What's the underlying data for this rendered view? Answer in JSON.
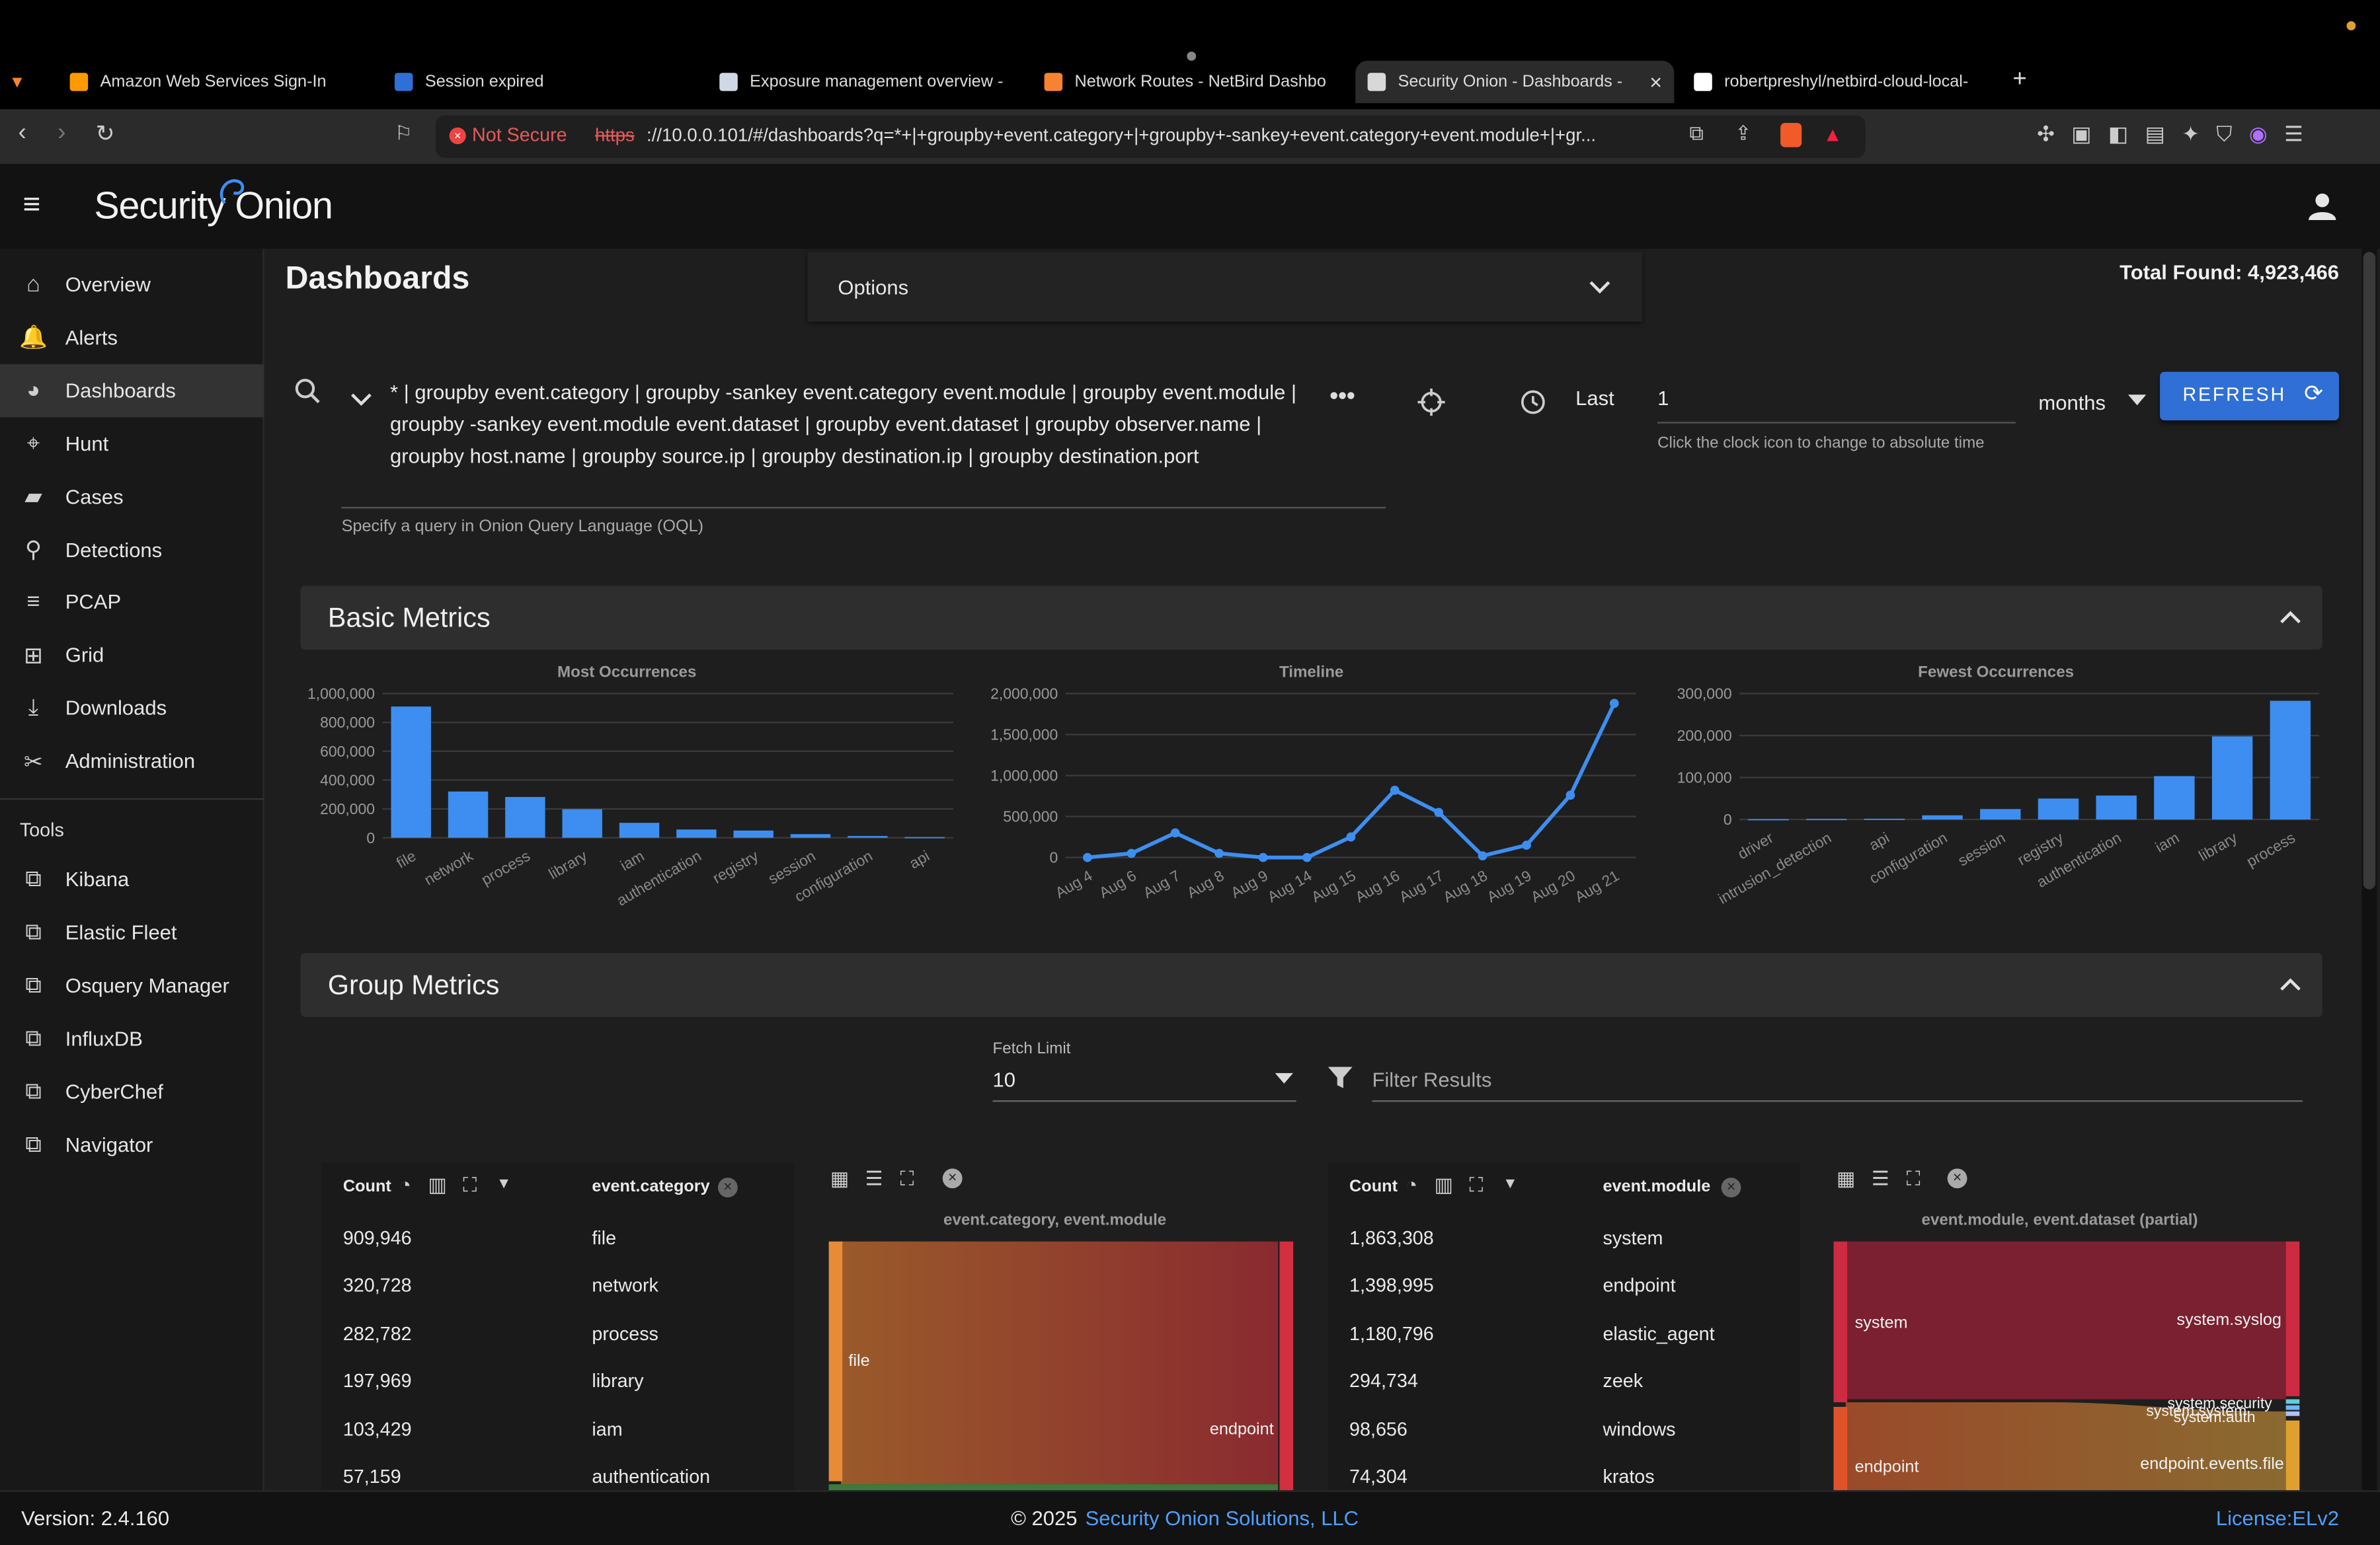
{
  "browser": {
    "tabs": [
      {
        "title": "Amazon Web Services Sign-In",
        "color": "#ff9900"
      },
      {
        "title": "Session expired",
        "color": "#2f6fd6"
      },
      {
        "title": "Exposure management overview -",
        "color": "#cfd8e6"
      },
      {
        "title": "Network Routes - NetBird Dashbo",
        "color": "#f68330"
      },
      {
        "title": "Security Onion - Dashboards -",
        "color": "#d8d8d8"
      },
      {
        "title": "robertpreshyl/netbird-cloud-local-",
        "color": "#ffffff"
      }
    ],
    "active_tab_index": 4,
    "not_secure_label": "Not Secure",
    "url_scheme": "https",
    "url_rest": "://10.0.0.101/#/dashboards?q=*+|+groupby+event.category+|+groupby+-sankey+event.category+event.module+|+gr..."
  },
  "app": {
    "logo_text_1": "Security",
    "logo_text_2": "Onion",
    "page_title": "Dashboards",
    "options_label": "Options",
    "total_found": "Total Found: 4,923,466"
  },
  "sidebar": {
    "items": [
      {
        "label": "Overview",
        "icon": "home-icon"
      },
      {
        "label": "Alerts",
        "icon": "bell-icon"
      },
      {
        "label": "Dashboards",
        "icon": "pie-chart-icon"
      },
      {
        "label": "Hunt",
        "icon": "crosshair-icon"
      },
      {
        "label": "Cases",
        "icon": "briefcase-icon"
      },
      {
        "label": "Detections",
        "icon": "search-icon"
      },
      {
        "label": "PCAP",
        "icon": "list-icon"
      },
      {
        "label": "Grid",
        "icon": "network-icon"
      },
      {
        "label": "Downloads",
        "icon": "download-icon"
      },
      {
        "label": "Administration",
        "icon": "tools-icon"
      }
    ],
    "active_index": 2,
    "tools_heading": "Tools",
    "tools": [
      {
        "label": "Kibana"
      },
      {
        "label": "Elastic Fleet"
      },
      {
        "label": "Osquery Manager"
      },
      {
        "label": "InfluxDB"
      },
      {
        "label": "CyberChef"
      },
      {
        "label": "Navigator"
      }
    ]
  },
  "query": {
    "text": "* | groupby event.category | groupby -sankey event.category event.module | groupby event.module | groupby -sankey event.module event.dataset | groupby event.dataset | groupby observer.name | groupby host.name | groupby source.ip | groupby destination.ip | groupby destination.port",
    "hint": "Specify a query in Onion Query Language (OQL)",
    "time_prefix": "Last",
    "time_value": "1",
    "time_unit": "months",
    "time_hint": "Click the clock icon to change to absolute time",
    "refresh_label": "REFRESH"
  },
  "basic_metrics": {
    "title": "Basic Metrics"
  },
  "group_metrics": {
    "title": "Group Metrics",
    "fetch_limit_label": "Fetch Limit",
    "fetch_limit_value": "10",
    "filter_placeholder": "Filter Results"
  },
  "chart_data": [
    {
      "type": "bar",
      "title": "Most Occurrences",
      "categories": [
        "file",
        "network",
        "process",
        "library",
        "iam",
        "authentication",
        "registry",
        "session",
        "configuration",
        "api"
      ],
      "values": [
        909946,
        320728,
        282782,
        197969,
        103429,
        57159,
        50000,
        25000,
        12000,
        5000
      ],
      "ylim": [
        0,
        1000000
      ],
      "yticks": [
        "1,000,000",
        "800,000",
        "600,000",
        "400,000",
        "200,000",
        "0"
      ],
      "color": "#3d8ef0"
    },
    {
      "type": "line",
      "title": "Timeline",
      "categories": [
        "Aug 4",
        "Aug 6",
        "Aug 7",
        "Aug 8",
        "Aug 9",
        "Aug 14",
        "Aug 15",
        "Aug 16",
        "Aug 17",
        "Aug 18",
        "Aug 19",
        "Aug 20",
        "Aug 21"
      ],
      "values": [
        0,
        50000,
        300000,
        50000,
        0,
        0,
        250000,
        820000,
        550000,
        20000,
        150000,
        760000,
        1880000
      ],
      "ylim": [
        0,
        2000000
      ],
      "yticks": [
        "2,000,000",
        "1,500,000",
        "1,000,000",
        "500,000",
        "0"
      ],
      "color": "#3d8ef0"
    },
    {
      "type": "bar",
      "title": "Fewest Occurrences",
      "categories": [
        "driver",
        "intrusion_detection",
        "api",
        "configuration",
        "session",
        "registry",
        "authentication",
        "iam",
        "library",
        "process"
      ],
      "values": [
        1000,
        1500,
        2000,
        10000,
        25000,
        50000,
        57159,
        103429,
        197969,
        282782
      ],
      "ylim": [
        0,
        300000
      ],
      "yticks": [
        "300,000",
        "200,000",
        "100,000",
        "0"
      ],
      "color": "#3d8ef0"
    }
  ],
  "table1": {
    "count_header": "Count",
    "field_header": "event.category",
    "rows": [
      {
        "count": "909,946",
        "value": "file"
      },
      {
        "count": "320,728",
        "value": "network"
      },
      {
        "count": "282,782",
        "value": "process"
      },
      {
        "count": "197,969",
        "value": "library"
      },
      {
        "count": "103,429",
        "value": "iam"
      },
      {
        "count": "57,159",
        "value": "authentication"
      }
    ]
  },
  "sankey1": {
    "title": "event.category, event.module",
    "left_label": "file",
    "right_label": "endpoint"
  },
  "table2": {
    "count_header": "Count",
    "field_header": "event.module",
    "rows": [
      {
        "count": "1,863,308",
        "value": "system"
      },
      {
        "count": "1,398,995",
        "value": "endpoint"
      },
      {
        "count": "1,180,796",
        "value": "elastic_agent"
      },
      {
        "count": "294,734",
        "value": "zeek"
      },
      {
        "count": "98,656",
        "value": "windows"
      },
      {
        "count": "74,304",
        "value": "kratos"
      }
    ]
  },
  "sankey2": {
    "title": "event.module, event.dataset (partial)",
    "left_top": "system",
    "right_top": "system.syslog",
    "mid_1": "system.security",
    "mid_2": "system.system",
    "mid_3": "system.auth",
    "left_bottom": "endpoint",
    "right_bottom": "endpoint.events.file"
  },
  "footer": {
    "version": "Version: 2.4.160",
    "copyright": "© 2025",
    "company": "Security Onion Solutions, LLC",
    "license": "License:ELv2"
  }
}
